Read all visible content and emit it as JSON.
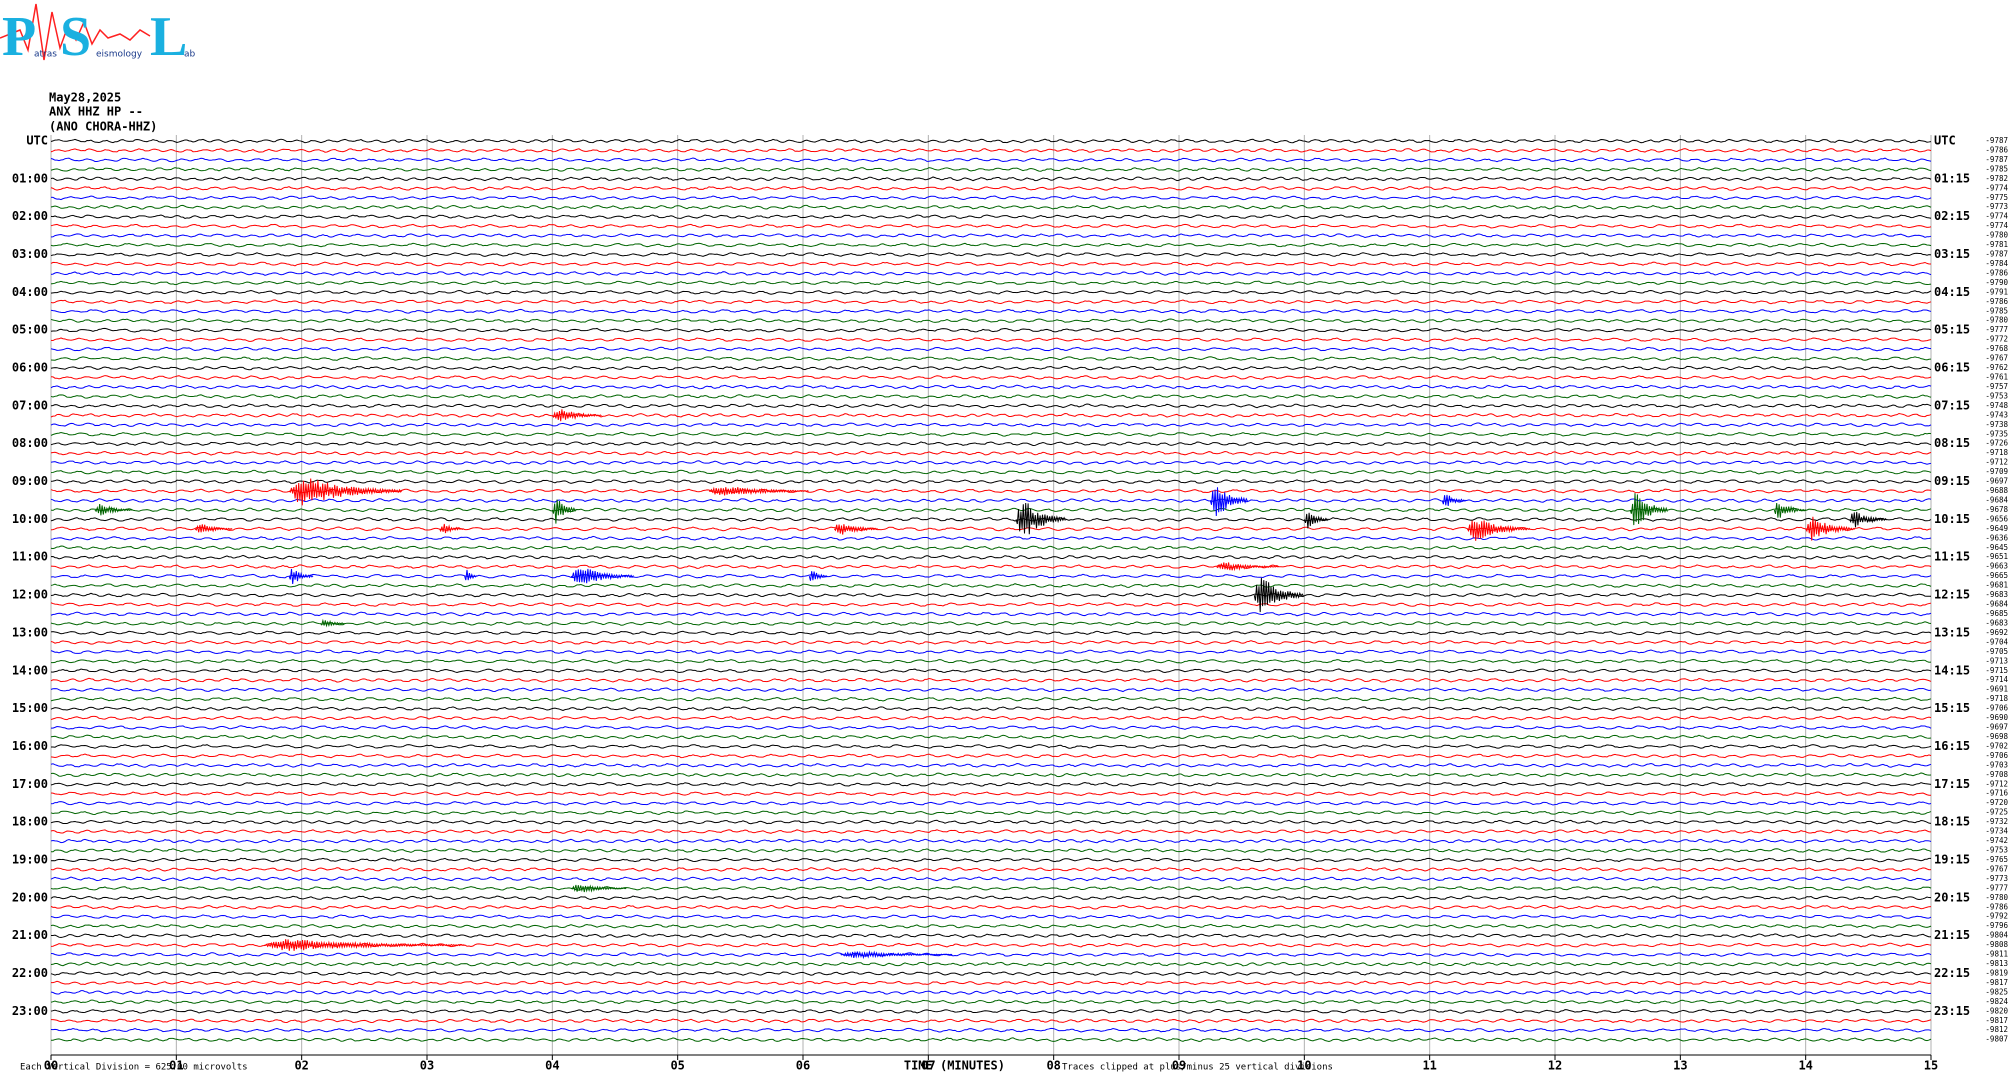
{
  "logo": {
    "letters": [
      "P",
      "S",
      "L"
    ],
    "words": [
      "atras",
      "eismology",
      "ab"
    ]
  },
  "header": [
    "May28,2025",
    "ANX HHZ HP --",
    "(ANO CHORA-HHZ)"
  ],
  "colors": [
    "#000000",
    "#ff0000",
    "#0000ff",
    "#006400"
  ],
  "left_labels": [
    "UTC",
    "01:00",
    "02:00",
    "03:00",
    "04:00",
    "05:00",
    "06:00",
    "07:00",
    "08:00",
    "09:00",
    "10:00",
    "11:00",
    "12:00",
    "13:00",
    "14:00",
    "15:00",
    "16:00",
    "17:00",
    "18:00",
    "19:00",
    "20:00",
    "21:00",
    "22:00",
    "23:00"
  ],
  "right_labels": [
    "UTC",
    "01:15",
    "02:15",
    "03:15",
    "04:15",
    "05:15",
    "06:15",
    "07:15",
    "08:15",
    "09:15",
    "10:15",
    "11:15",
    "12:15",
    "13:15",
    "14:15",
    "15:15",
    "16:15",
    "17:15",
    "18:15",
    "19:15",
    "20:15",
    "21:15",
    "22:15",
    "23:15"
  ],
  "trace_offsets": [
    -9787,
    -9786,
    -9787,
    -9785,
    -9782,
    -9774,
    -9775,
    -9773,
    -9774,
    -9774,
    -9780,
    -9781,
    -9787,
    -9784,
    -9786,
    -9790,
    -9791,
    -9786,
    -9785,
    -9780,
    -9777,
    -9772,
    -9768,
    -9767,
    -9762,
    -9761,
    -9757,
    -9753,
    -9748,
    -9743,
    -9738,
    -9735,
    -9726,
    -9718,
    -9712,
    -9709,
    -9697,
    -9688,
    -9684,
    -9678,
    -9656,
    -9649,
    -9636,
    -9645,
    -9651,
    -9663,
    -9665,
    -9681,
    -9683,
    -9684,
    -9685,
    -9683,
    -9692,
    -9704,
    -9705,
    -9713,
    -9715,
    -9714,
    -9691,
    -9718,
    -9706,
    -9690,
    -9697,
    -9698,
    -9702,
    -9706,
    -9703,
    -9708,
    -9712,
    -9716,
    -9720,
    -9725,
    -9732,
    -9734,
    -9742,
    -9753,
    -9765,
    -9767,
    -9773,
    -9777,
    -9780,
    -9786,
    -9792,
    -9796,
    -9804,
    -9808,
    -9811,
    -9813,
    -9819,
    -9817,
    -9825,
    -9824,
    -9820,
    -9817,
    -9812,
    -9807
  ],
  "xlim": [
    0,
    15
  ],
  "xticks": [
    {
      "value": 0,
      "label": "00"
    },
    {
      "value": 1,
      "label": "01"
    },
    {
      "value": 2,
      "label": "02"
    },
    {
      "value": 3,
      "label": "03"
    },
    {
      "value": 4,
      "label": "04"
    },
    {
      "value": 5,
      "label": "05"
    },
    {
      "value": 6,
      "label": "06"
    },
    {
      "value": 7,
      "label": "07"
    },
    {
      "value": 8,
      "label": "08"
    },
    {
      "value": 9,
      "label": "09"
    },
    10,
    11,
    12,
    13,
    14,
    15
  ],
  "x_label": "TIME (MINUTES)",
  "scale_note": "Each Vertical Division =  625.00 microvolts",
  "clip_note": "Traces clipped at plus/minus 25 vertical divisions",
  "events": [
    {
      "trace": 29,
      "minute": 4.0,
      "duration": 0.4,
      "amplitude": 1.2
    },
    {
      "trace": 37,
      "minute": 1.9,
      "duration": 0.9,
      "amplitude": 2.5
    },
    {
      "trace": 37,
      "minute": 5.25,
      "duration": 0.8,
      "amplitude": 1.0
    },
    {
      "trace": 38,
      "minute": 9.25,
      "duration": 0.3,
      "amplitude": 3.5
    },
    {
      "trace": 38,
      "minute": 11.1,
      "duration": 0.2,
      "amplitude": 1.2
    },
    {
      "trace": 39,
      "minute": 0.35,
      "duration": 0.3,
      "amplitude": 1.0
    },
    {
      "trace": 39,
      "minute": 4.0,
      "duration": 0.2,
      "amplitude": 2.5
    },
    {
      "trace": 39,
      "minute": 12.6,
      "duration": 0.3,
      "amplitude": 3.5
    },
    {
      "trace": 39,
      "minute": 13.75,
      "duration": 0.25,
      "amplitude": 1.5
    },
    {
      "trace": 40,
      "minute": 7.7,
      "duration": 0.4,
      "amplitude": 3.5
    },
    {
      "trace": 40,
      "minute": 10.0,
      "duration": 0.2,
      "amplitude": 1.5
    },
    {
      "trace": 40,
      "minute": 14.35,
      "duration": 0.3,
      "amplitude": 1.5
    },
    {
      "trace": 41,
      "minute": 1.15,
      "duration": 0.3,
      "amplitude": 1.0
    },
    {
      "trace": 41,
      "minute": 3.1,
      "duration": 0.2,
      "amplitude": 1.0
    },
    {
      "trace": 41,
      "minute": 6.25,
      "duration": 0.35,
      "amplitude": 1.2
    },
    {
      "trace": 41,
      "minute": 11.3,
      "duration": 0.5,
      "amplitude": 2.0
    },
    {
      "trace": 41,
      "minute": 14.0,
      "duration": 0.4,
      "amplitude": 2.0
    },
    {
      "trace": 45,
      "minute": 9.3,
      "duration": 0.5,
      "amplitude": 0.8
    },
    {
      "trace": 46,
      "minute": 1.9,
      "duration": 0.2,
      "amplitude": 1.5
    },
    {
      "trace": 46,
      "minute": 3.3,
      "duration": 0.1,
      "amplitude": 1.5
    },
    {
      "trace": 46,
      "minute": 4.15,
      "duration": 0.5,
      "amplitude": 1.8
    },
    {
      "trace": 46,
      "minute": 6.05,
      "duration": 0.15,
      "amplitude": 1.2
    },
    {
      "trace": 48,
      "minute": 9.6,
      "duration": 0.4,
      "amplitude": 3.5
    },
    {
      "trace": 51,
      "minute": 2.15,
      "duration": 0.2,
      "amplitude": 0.8
    },
    {
      "trace": 79,
      "minute": 4.15,
      "duration": 0.45,
      "amplitude": 0.8
    },
    {
      "trace": 85,
      "minute": 1.7,
      "duration": 1.6,
      "amplitude": 1.0
    },
    {
      "trace": 86,
      "minute": 6.3,
      "duration": 0.9,
      "amplitude": 0.6
    }
  ]
}
